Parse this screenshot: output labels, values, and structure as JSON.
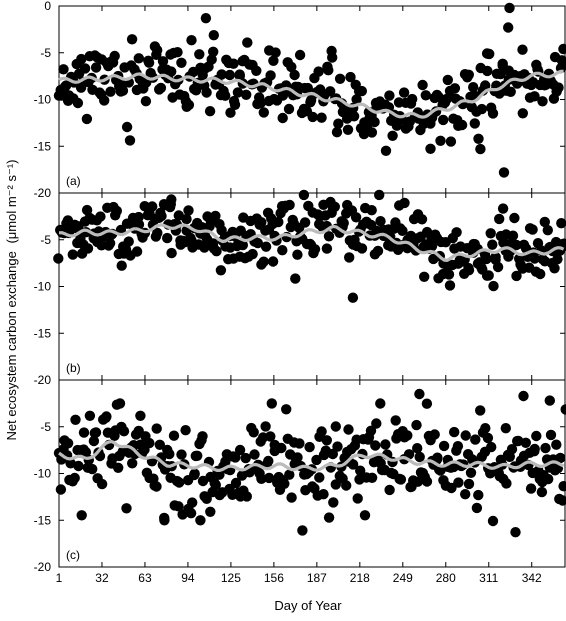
{
  "chart_data": {
    "type": "scatter",
    "xlabel": "Day of Year",
    "ylabel": "Net ecosystem carbon exchange",
    "ylabel_units": "(μmol m⁻² s⁻¹)",
    "xlim": [
      1,
      366
    ],
    "x_ticks": [
      1,
      32,
      63,
      94,
      125,
      156,
      187,
      218,
      249,
      280,
      311,
      342
    ],
    "ylim": [
      -20,
      0
    ],
    "y_ticks_panel_a": [
      0,
      -5,
      -10,
      -15,
      -20
    ],
    "y_ticks_panels_bc": [
      -5,
      -10,
      -15,
      -20
    ],
    "grid": false,
    "legend": "none",
    "colors": {
      "points": "#000000",
      "smooth_line": "#bbbbbb"
    },
    "panels": [
      {
        "label": "(a)",
        "smooth": {
          "x": [
            1,
            30,
            60,
            90,
            120,
            150,
            180,
            210,
            240,
            260,
            280,
            300,
            320,
            340,
            366
          ],
          "y": [
            -8,
            -7.8,
            -7.5,
            -7.8,
            -8,
            -8.6,
            -9.5,
            -10.4,
            -11.5,
            -11.8,
            -11,
            -10,
            -8.5,
            -7.5,
            -7.2
          ]
        },
        "scatter": {
          "x_start": 1,
          "x_end": 366,
          "n": 330,
          "noise_sd": 1.8,
          "seed": 11
        },
        "outliers": [
          {
            "x": 107,
            "y": -1.3
          },
          {
            "x": 325,
            "y": -2.3
          },
          {
            "x": 326,
            "y": -0.2
          },
          {
            "x": 322,
            "y": -17.8
          },
          {
            "x": 305,
            "y": -15.3
          }
        ]
      },
      {
        "label": "(b)",
        "smooth": {
          "x": [
            1,
            20,
            40,
            60,
            80,
            100,
            120,
            140,
            160,
            180,
            200,
            220,
            240,
            260,
            280,
            300,
            320,
            340,
            366
          ],
          "y": [
            -4.5,
            -4.2,
            -4.3,
            -4.0,
            -3.5,
            -3.8,
            -5.0,
            -4.8,
            -4.8,
            -4.2,
            -3.8,
            -4.3,
            -4.8,
            -6.0,
            -7.0,
            -6.5,
            -6.0,
            -6.5,
            -6.0
          ]
        },
        "scatter": {
          "x_start": 1,
          "x_end": 366,
          "n": 340,
          "noise_sd": 1.6,
          "seed": 23
        },
        "outliers": [
          {
            "x": 213,
            "y": -11.2
          },
          {
            "x": 232,
            "y": -0.2
          },
          {
            "x": 82,
            "y": -0.7
          }
        ]
      },
      {
        "label": "(c)",
        "smooth": {
          "x": [
            1,
            20,
            40,
            60,
            80,
            100,
            120,
            140,
            160,
            180,
            200,
            220,
            240,
            260,
            280,
            300,
            320,
            340,
            366
          ],
          "y": [
            -8,
            -8.5,
            -6.5,
            -8,
            -9,
            -9.2,
            -9.5,
            -9.3,
            -9.2,
            -9.5,
            -9.2,
            -8.0,
            -8.3,
            -8.8,
            -9.0,
            -9.0,
            -9.3,
            -9.0,
            -9.0
          ]
        },
        "scatter": {
          "x_start": 1,
          "x_end": 366,
          "n": 340,
          "noise_sd": 2.4,
          "seed": 37
        },
        "outliers": [
          {
            "x": 45,
            "y": -2.5
          },
          {
            "x": 103,
            "y": -15.0
          },
          {
            "x": 77,
            "y": -15.0
          },
          {
            "x": 261,
            "y": -1.5
          },
          {
            "x": 355,
            "y": -2.2
          }
        ]
      }
    ]
  }
}
